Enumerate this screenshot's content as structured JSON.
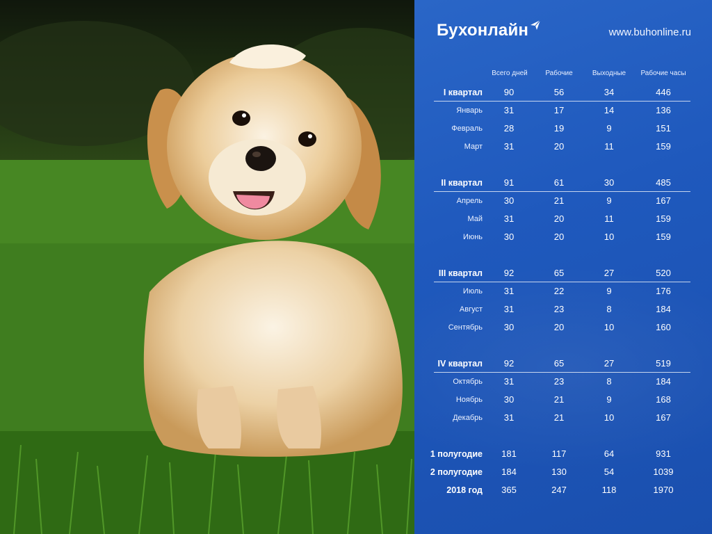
{
  "brand": {
    "name": "Бухонлайн",
    "website": "www.buhonline.ru"
  },
  "columns": [
    "Всего дней",
    "Рабочие",
    "Выходные",
    "Рабочие часы"
  ],
  "rows": [
    {
      "label": "I квартал",
      "kind": "q",
      "values": [
        "90",
        "56",
        "34",
        "446"
      ]
    },
    {
      "label": "Январь",
      "kind": "m",
      "values": [
        "31",
        "17",
        "14",
        "136"
      ]
    },
    {
      "label": "Февраль",
      "kind": "m",
      "values": [
        "28",
        "19",
        "9",
        "151"
      ]
    },
    {
      "label": "Март",
      "kind": "m",
      "values": [
        "31",
        "20",
        "11",
        "159"
      ]
    },
    {
      "label": "II квартал",
      "kind": "q",
      "values": [
        "91",
        "61",
        "30",
        "485"
      ]
    },
    {
      "label": "Апрель",
      "kind": "m",
      "values": [
        "30",
        "21",
        "9",
        "167"
      ]
    },
    {
      "label": "Май",
      "kind": "m",
      "values": [
        "31",
        "20",
        "11",
        "159"
      ]
    },
    {
      "label": "Июнь",
      "kind": "m",
      "values": [
        "30",
        "20",
        "10",
        "159"
      ]
    },
    {
      "label": "III квартал",
      "kind": "q",
      "values": [
        "92",
        "65",
        "27",
        "520"
      ]
    },
    {
      "label": "Июль",
      "kind": "m",
      "values": [
        "31",
        "22",
        "9",
        "176"
      ]
    },
    {
      "label": "Август",
      "kind": "m",
      "values": [
        "31",
        "23",
        "8",
        "184"
      ]
    },
    {
      "label": "Сентябрь",
      "kind": "m",
      "values": [
        "30",
        "20",
        "10",
        "160"
      ]
    },
    {
      "label": "IV квартал",
      "kind": "q",
      "values": [
        "92",
        "65",
        "27",
        "519"
      ]
    },
    {
      "label": "Октябрь",
      "kind": "m",
      "values": [
        "31",
        "23",
        "8",
        "184"
      ]
    },
    {
      "label": "Ноябрь",
      "kind": "m",
      "values": [
        "30",
        "21",
        "9",
        "168"
      ]
    },
    {
      "label": "Декабрь",
      "kind": "m",
      "values": [
        "31",
        "21",
        "10",
        "167"
      ]
    },
    {
      "label": "1 полугодие",
      "kind": "h",
      "values": [
        "181",
        "117",
        "64",
        "931"
      ]
    },
    {
      "label": "2 полугодие",
      "kind": "h",
      "values": [
        "184",
        "130",
        "54",
        "1039"
      ]
    },
    {
      "label": "2018 год",
      "kind": "h",
      "values": [
        "365",
        "247",
        "118",
        "1970"
      ]
    }
  ],
  "colors": {
    "panel": "#1f59bd",
    "text": "#ffffff",
    "grass": "#3f7d1e",
    "fur": "#e8c491"
  }
}
